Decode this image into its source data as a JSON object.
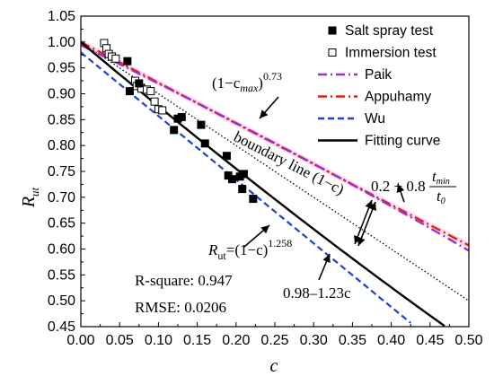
{
  "chart_data": {
    "type": "scatter",
    "xlabel": "c",
    "ylabel_main": "R",
    "ylabel_sub": "ut",
    "xlim": [
      0.0,
      0.5
    ],
    "ylim": [
      0.45,
      1.05
    ],
    "x_ticks": [
      "0.00",
      "0.05",
      "0.10",
      "0.15",
      "0.20",
      "0.25",
      "0.30",
      "0.35",
      "0.40",
      "0.45",
      "0.50"
    ],
    "y_ticks": [
      "0.45",
      "0.50",
      "0.55",
      "0.60",
      "0.65",
      "0.70",
      "0.75",
      "0.80",
      "0.85",
      "0.90",
      "0.95",
      "1.00",
      "1.05"
    ],
    "legend": [
      {
        "label": "Salt spray test",
        "marker": "filled-square"
      },
      {
        "label": "Immersion test",
        "marker": "open-square"
      },
      {
        "label": "Paik",
        "style": "dash-dot",
        "color": "#9a32cd"
      },
      {
        "label": "Appuhamy",
        "style": "dash-dot",
        "color": "#e0201b"
      },
      {
        "label": "Wu",
        "style": "dashed",
        "color": "#1f3fd6"
      },
      {
        "label": "Fitting curve",
        "style": "solid",
        "color": "#000000"
      }
    ],
    "series": [
      {
        "name": "Salt spray test",
        "points": [
          [
            0.06,
            0.963
          ],
          [
            0.063,
            0.905
          ],
          [
            0.075,
            0.92
          ],
          [
            0.12,
            0.83
          ],
          [
            0.125,
            0.852
          ],
          [
            0.13,
            0.855
          ],
          [
            0.155,
            0.84
          ],
          [
            0.16,
            0.804
          ],
          [
            0.188,
            0.78
          ],
          [
            0.19,
            0.742
          ],
          [
            0.195,
            0.735
          ],
          [
            0.205,
            0.74
          ],
          [
            0.208,
            0.716
          ],
          [
            0.21,
            0.745
          ],
          [
            0.222,
            0.697
          ]
        ]
      },
      {
        "name": "Immersion test",
        "points": [
          [
            0.03,
            0.998
          ],
          [
            0.033,
            0.988
          ],
          [
            0.036,
            0.977
          ],
          [
            0.04,
            0.972
          ],
          [
            0.045,
            0.968
          ],
          [
            0.07,
            0.925
          ],
          [
            0.072,
            0.915
          ],
          [
            0.078,
            0.91
          ],
          [
            0.085,
            0.908
          ],
          [
            0.09,
            0.905
          ],
          [
            0.095,
            0.885
          ],
          [
            0.1,
            0.87
          ],
          [
            0.105,
            0.868
          ]
        ]
      }
    ],
    "curves": {
      "paik": {
        "a": 1.0,
        "b": 0.73,
        "color": "#9a32cd"
      },
      "appuhamy": {
        "x1": 0.5,
        "y1": 0.607,
        "color": "#e0201b"
      },
      "wu": {
        "intercept": 0.98,
        "slope": -1.23,
        "color": "#1f3fd6"
      },
      "fitting": {
        "exponent": 1.258,
        "color": "#000000"
      },
      "boundary": {
        "description": "1-c"
      }
    },
    "annotations": {
      "paik_formula": "(1−c",
      "paik_formula_sub": "max",
      "paik_formula_exp": "0.73",
      "paik_formula_close": ")",
      "boundary": "boundary line (1−c)",
      "appuhamy_formula_a": "0.2 + 0.8",
      "appuhamy_frac_num": "t",
      "appuhamy_frac_num_sub": "min",
      "appuhamy_frac_den": "t",
      "appuhamy_frac_den_sub": "0",
      "fit_formula_lhs": "R",
      "fit_formula_lhs_sub": "ut",
      "fit_formula_rhs": "=(1−c)",
      "fit_formula_exp": "1.258",
      "rsquare": "R-square: 0.947",
      "rmse": "RMSE: 0.0206",
      "wu_formula": "0.98–1.23c"
    }
  }
}
